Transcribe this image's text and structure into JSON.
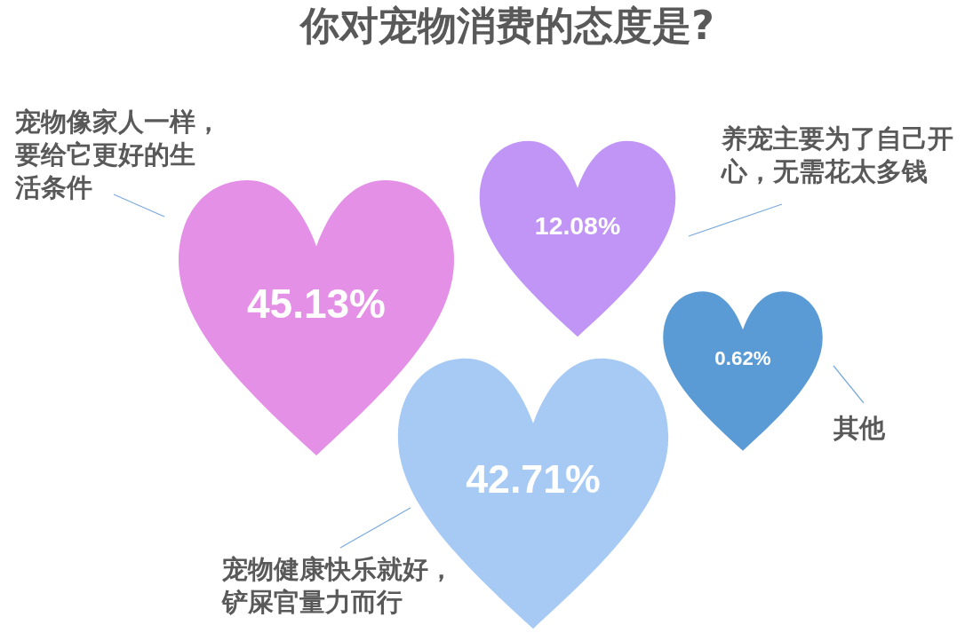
{
  "chart_data": {
    "type": "other",
    "title": "你对宠物消费的态度是?",
    "categories": [
      "宠物像家人一样，要给它更好的生活条件",
      "养宠主要为了自己开心，无需花太多钱",
      "其他",
      "宠物健康快乐就好，铲屎官量力而行"
    ],
    "values": [
      45.13,
      12.08,
      0.62,
      42.71
    ],
    "value_labels": [
      "45.13%",
      "12.08%",
      "0.62%",
      "42.71%"
    ],
    "colors": [
      "#e390e6",
      "#c095f5",
      "#5b9bd5",
      "#a7caf5"
    ]
  }
}
